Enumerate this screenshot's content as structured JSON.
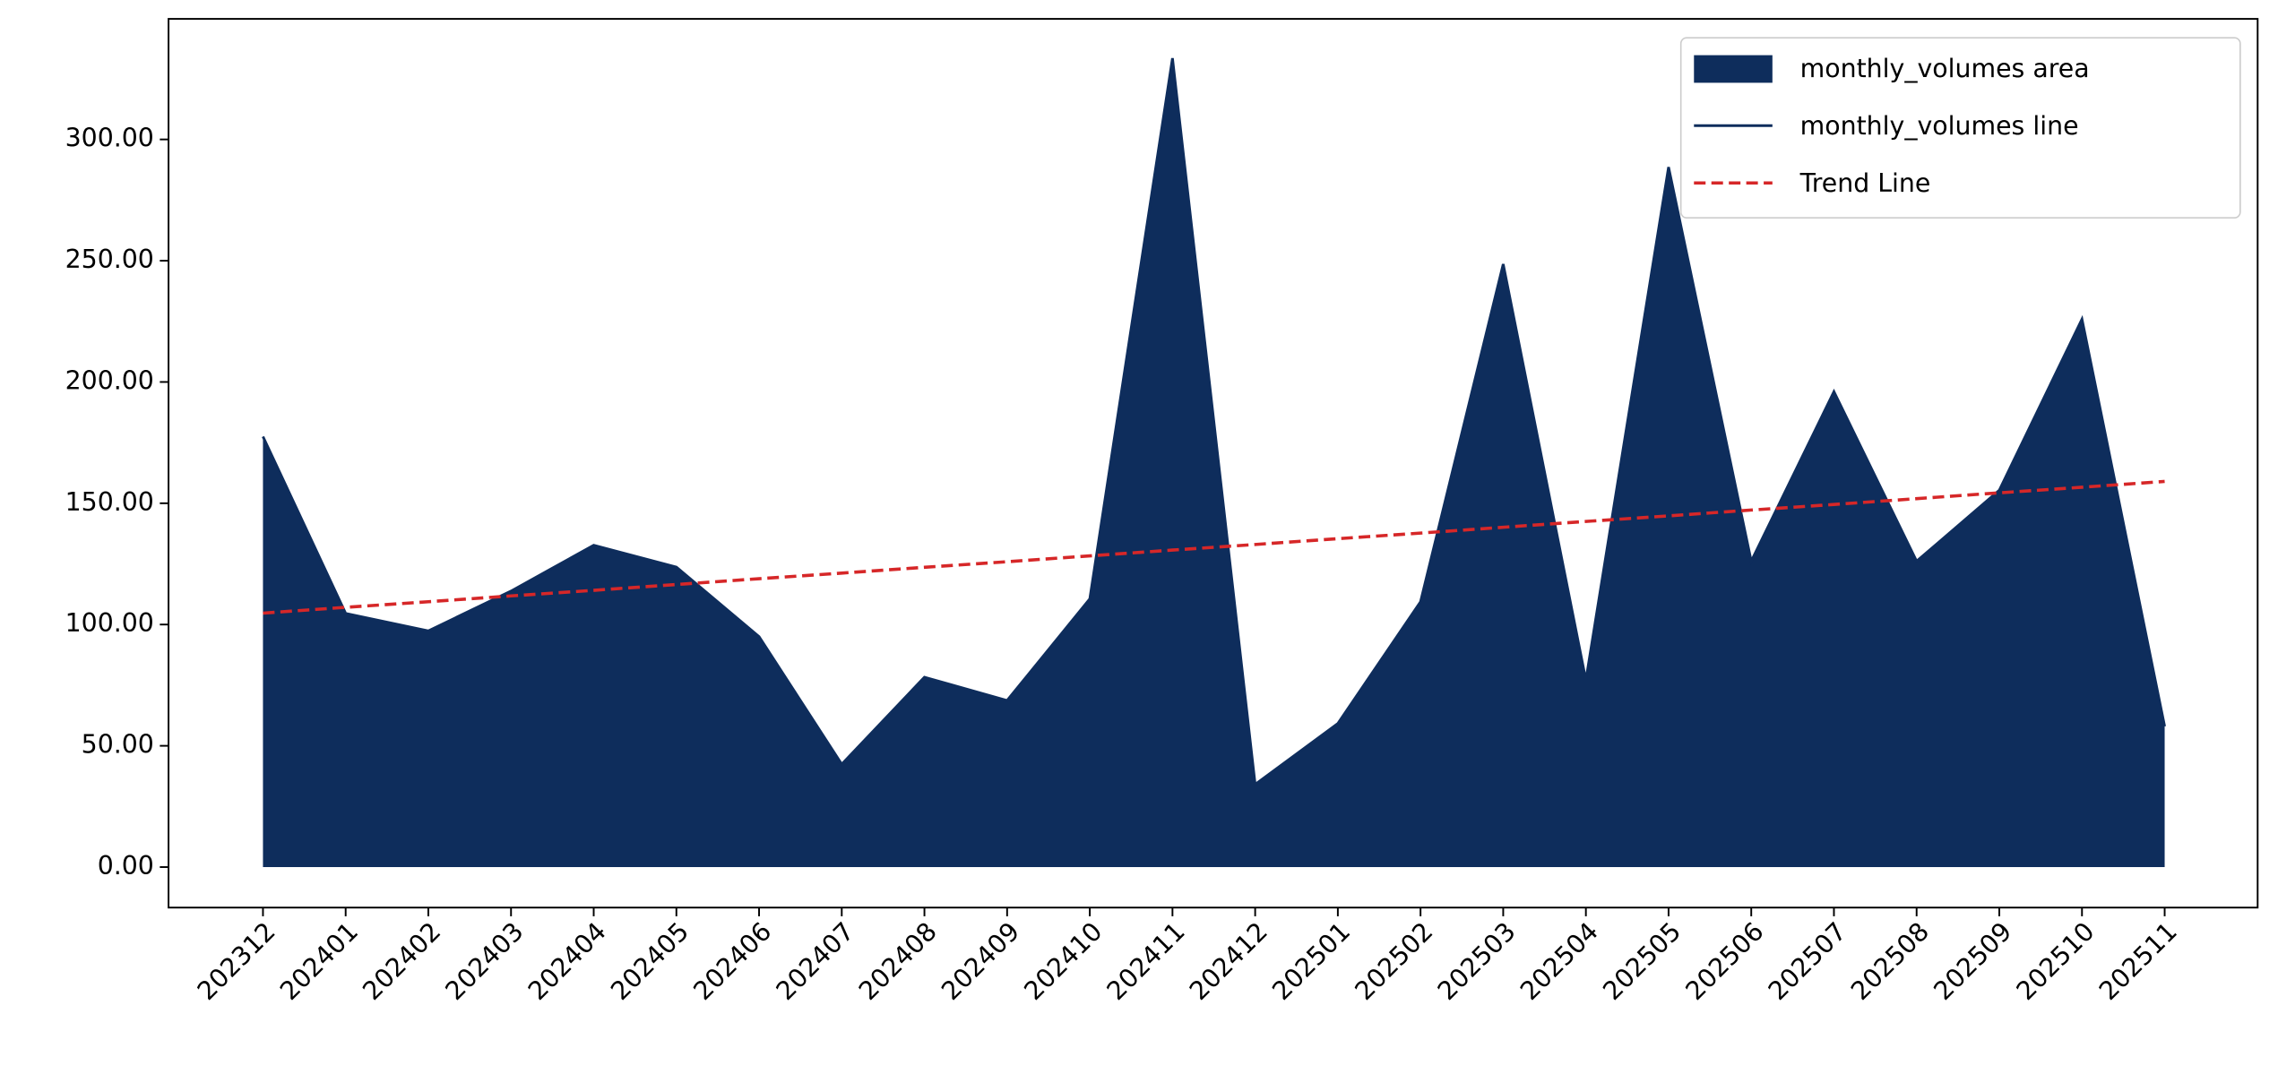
{
  "chart_data": {
    "type": "area",
    "categories": [
      "202312",
      "202401",
      "202402",
      "202403",
      "202404",
      "202405",
      "202406",
      "202407",
      "202408",
      "202409",
      "202410",
      "202411",
      "202412",
      "202501",
      "202502",
      "202503",
      "202504",
      "202505",
      "202506",
      "202507",
      "202508",
      "202509",
      "202510",
      "202511"
    ],
    "series": [
      {
        "name": "monthly_volumes area",
        "type": "area",
        "color": "#0e2d5c",
        "values": [
          177.5,
          104.6,
          97.4,
          113.8,
          132.7,
          123.7,
          95.0,
          42.4,
          78.3,
          68.7,
          110.6,
          333.5,
          34.1,
          59.2,
          109.4,
          248.6,
          77.1,
          288.6,
          126.1,
          196.0,
          126.1,
          155.4,
          225.9,
          58.0
        ]
      },
      {
        "name": "monthly_volumes line",
        "type": "line",
        "color": "#0e2d5c",
        "values": [
          177.5,
          104.6,
          97.4,
          113.8,
          132.7,
          123.7,
          95.0,
          42.4,
          78.3,
          68.7,
          110.6,
          333.5,
          34.1,
          59.2,
          109.4,
          248.6,
          77.1,
          288.6,
          126.1,
          196.0,
          126.1,
          155.4,
          225.9,
          58.0
        ]
      },
      {
        "name": "Trend Line",
        "type": "line",
        "dashed": true,
        "color": "#d62728",
        "values": [
          104.7,
          107.1,
          109.4,
          111.8,
          114.1,
          116.5,
          118.9,
          121.2,
          123.6,
          125.9,
          128.3,
          130.7,
          133.0,
          135.4,
          137.7,
          140.1,
          142.5,
          144.8,
          147.2,
          149.5,
          151.9,
          154.3,
          156.6,
          159.0
        ]
      }
    ],
    "ylim": [
      -16.7,
      349.7
    ],
    "yticks": [
      {
        "value": 0,
        "label": "0.00"
      },
      {
        "value": 50,
        "label": "50.00"
      },
      {
        "value": 100,
        "label": "100.00"
      },
      {
        "value": 150,
        "label": "150.00"
      },
      {
        "value": 200,
        "label": "200.00"
      },
      {
        "value": 250,
        "label": "250.00"
      },
      {
        "value": 300,
        "label": "300.00"
      }
    ],
    "legend": "upper right"
  }
}
